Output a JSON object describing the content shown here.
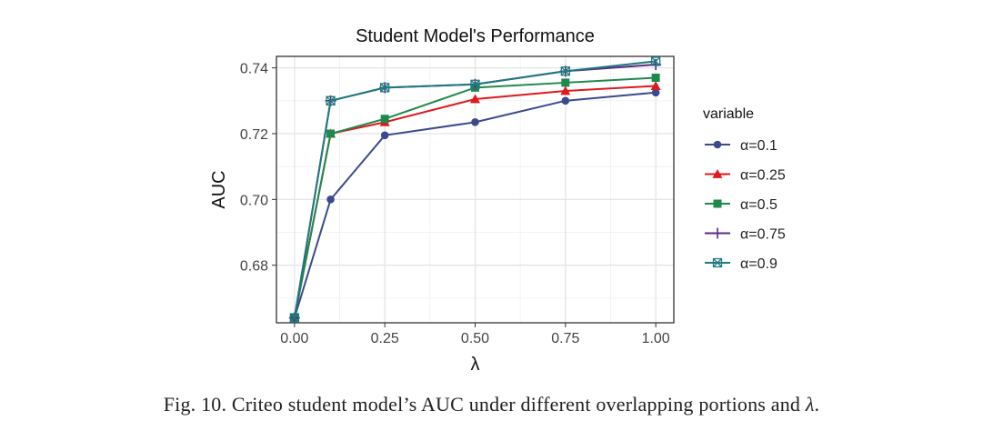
{
  "figure": {
    "caption_prefix": "Fig. 10.  Criteo student model’s AUC under different overlapping portions and ",
    "caption_symbol": "λ",
    "caption_suffix": "."
  },
  "chart_data": {
    "type": "line",
    "title": "Student Model's Performance",
    "xlabel": "λ",
    "ylabel": "AUC",
    "x": [
      0.0,
      0.1,
      0.25,
      0.5,
      0.75,
      1.0
    ],
    "xticks": [
      0.0,
      0.25,
      0.5,
      0.75,
      1.0
    ],
    "xtick_labels": [
      "0.00",
      "0.25",
      "0.50",
      "0.75",
      "1.00"
    ],
    "yticks": [
      0.68,
      0.7,
      0.72,
      0.74
    ],
    "ytick_labels": [
      "0.68",
      "0.70",
      "0.72",
      "0.74"
    ],
    "xlim": [
      -0.05,
      1.05
    ],
    "ylim": [
      0.6625,
      0.7435
    ],
    "grid": true,
    "legend": {
      "title": "variable",
      "position": "right"
    },
    "series": [
      {
        "name": "α=0.1",
        "color": "#3b4a8c",
        "marker": "circle",
        "values": [
          0.664,
          0.7,
          0.7195,
          0.7235,
          0.73,
          0.7325
        ]
      },
      {
        "name": "α=0.25",
        "color": "#e0191e",
        "marker": "triangle",
        "values": [
          0.664,
          0.72,
          0.7235,
          0.7305,
          0.733,
          0.7345
        ]
      },
      {
        "name": "α=0.5",
        "color": "#1e8a4a",
        "marker": "square",
        "values": [
          0.664,
          0.72,
          0.7245,
          0.734,
          0.7355,
          0.737
        ]
      },
      {
        "name": "α=0.75",
        "color": "#5b2a82",
        "marker": "plus",
        "values": [
          0.664,
          0.73,
          0.734,
          0.735,
          0.739,
          0.741
        ]
      },
      {
        "name": "α=0.9",
        "color": "#1f7a80",
        "marker": "boxx",
        "values": [
          0.664,
          0.73,
          0.734,
          0.735,
          0.739,
          0.742
        ]
      }
    ]
  }
}
